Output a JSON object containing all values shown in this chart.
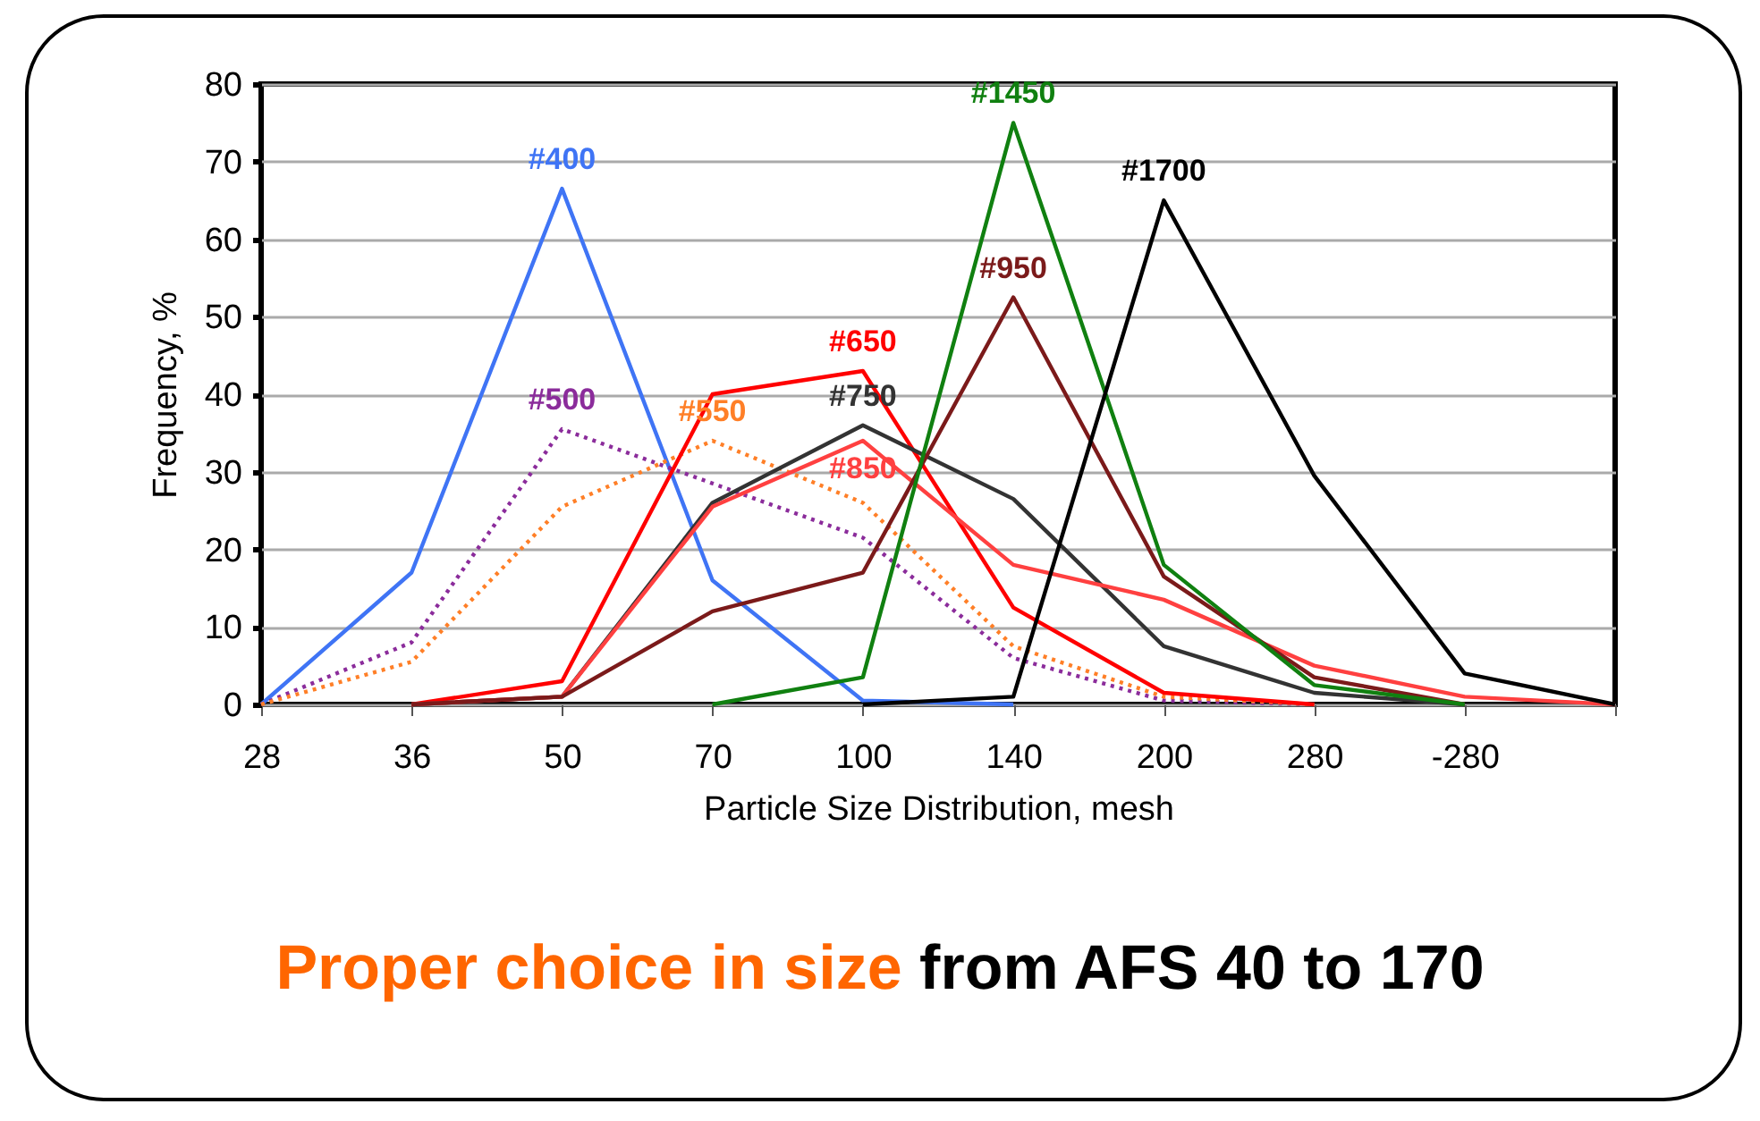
{
  "chart_data": {
    "type": "line",
    "xlabel": "Particle Size Distribution, mesh",
    "ylabel": "Frequency, %",
    "categories": [
      "28",
      "36",
      "50",
      "70",
      "100",
      "140",
      "200",
      "280",
      "-280",
      null
    ],
    "series": [
      {
        "name": "#400",
        "color": "#3f74f5",
        "line_style": "solid",
        "values": [
          0,
          17,
          66.5,
          16,
          0.5,
          0,
          null,
          null,
          null,
          null
        ]
      },
      {
        "name": "#500",
        "color": "#8b2c9b",
        "line_style": "dotted",
        "values": [
          0,
          8,
          35.5,
          28.5,
          21.5,
          6,
          0.5,
          0,
          null,
          null
        ]
      },
      {
        "name": "#550",
        "color": "#ff7f27",
        "line_style": "dotted",
        "values": [
          0,
          5.5,
          25.5,
          34,
          26,
          7.5,
          1,
          0,
          null,
          null
        ]
      },
      {
        "name": "#650",
        "color": "#ff0000",
        "line_style": "solid",
        "values": [
          null,
          0,
          3,
          40,
          43,
          12.5,
          1.5,
          0,
          null,
          null
        ]
      },
      {
        "name": "#750",
        "color": "#333333",
        "line_style": "solid",
        "values": [
          null,
          0,
          1,
          26,
          36,
          26.5,
          7.5,
          1.5,
          0,
          null
        ]
      },
      {
        "name": "#850",
        "color": "#ff4040",
        "line_style": "solid",
        "values": [
          null,
          0,
          1,
          25.5,
          34,
          18,
          13.5,
          5,
          1,
          0
        ]
      },
      {
        "name": "#950",
        "color": "#7b1a1a",
        "line_style": "solid",
        "values": [
          null,
          0,
          1,
          12,
          17,
          52.5,
          16.5,
          3.5,
          0,
          null
        ]
      },
      {
        "name": "#1450",
        "color": "#108010",
        "line_style": "solid",
        "values": [
          null,
          null,
          null,
          0,
          3.5,
          75,
          18,
          2.5,
          0,
          null
        ]
      },
      {
        "name": "#1700",
        "color": "#000000",
        "line_style": "solid",
        "values": [
          null,
          null,
          null,
          null,
          0,
          1,
          65,
          29.5,
          4,
          0
        ]
      }
    ],
    "annotations": [
      "Proper choice in size",
      "from AFS 40 to 170"
    ],
    "ylim": [
      0,
      80
    ],
    "yticks": [
      0,
      10,
      20,
      30,
      40,
      50,
      60,
      70,
      80
    ],
    "grid": "y",
    "marker": "none"
  }
}
